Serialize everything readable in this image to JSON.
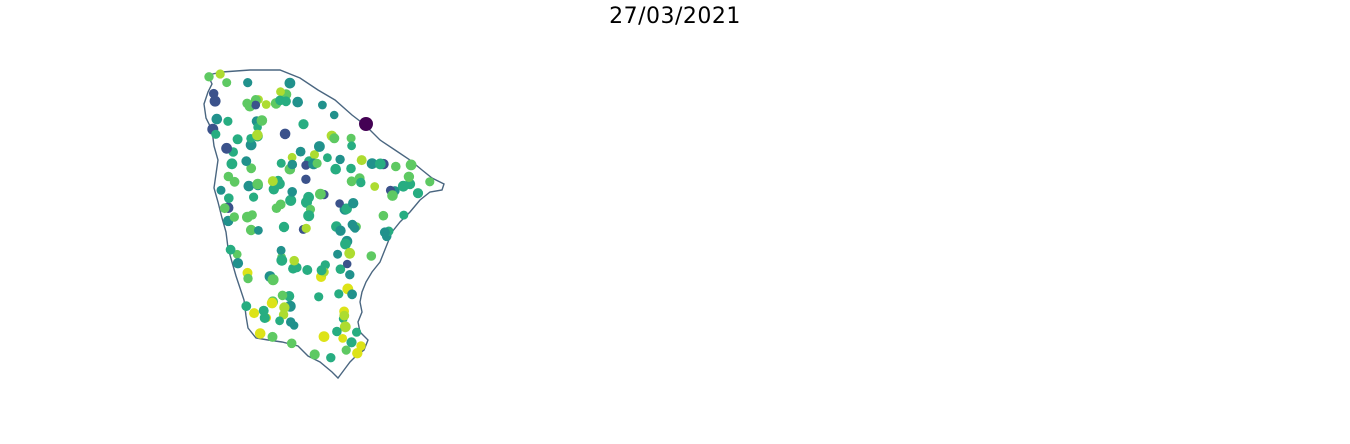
{
  "figure": {
    "title": "27/03/2021"
  },
  "colors": {
    "outline": "#4a6680",
    "viridis": [
      "#440154",
      "#3b528b",
      "#21918c",
      "#27ad81",
      "#5ec962",
      "#addc30",
      "#dde318"
    ],
    "categorical": {
      "red": "#fb4141",
      "orange": "#fb951c",
      "yellow": "#f9c34e",
      "slate": "#547894"
    }
  },
  "panels": [
    {
      "id": "points",
      "kind": "proportional-dots"
    },
    {
      "id": "choropleth",
      "kind": "continuous-choropleth"
    },
    {
      "id": "classes",
      "kind": "categorical-choropleth"
    }
  ]
}
